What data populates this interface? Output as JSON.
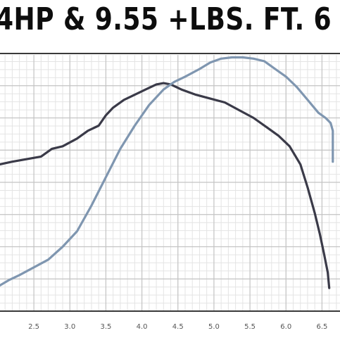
{
  "chart_data": {
    "type": "line",
    "title": "4HP & 9.55 +LBS. FT. 6",
    "xlabel": "",
    "ylabel": "",
    "x_ticks": [
      "2.5",
      "3.0",
      "3.5",
      "4.0",
      "4.5",
      "5.0",
      "5.5",
      "6.0",
      "6.5"
    ],
    "xlim": [
      2.03,
      6.75
    ],
    "ylim": [
      0,
      100
    ],
    "grid": true,
    "legend": "none",
    "series": [
      {
        "color": "#3a3a48",
        "points": [
          [
            2.03,
            57
          ],
          [
            2.2,
            58
          ],
          [
            2.4,
            59
          ],
          [
            2.6,
            60
          ],
          [
            2.75,
            63
          ],
          [
            2.9,
            64
          ],
          [
            3.1,
            67
          ],
          [
            3.25,
            70
          ],
          [
            3.4,
            72
          ],
          [
            3.5,
            76
          ],
          [
            3.6,
            79
          ],
          [
            3.75,
            82
          ],
          [
            3.9,
            84
          ],
          [
            4.05,
            86
          ],
          [
            4.2,
            88
          ],
          [
            4.3,
            88.5
          ],
          [
            4.4,
            88
          ],
          [
            4.55,
            86
          ],
          [
            4.75,
            84
          ],
          [
            4.95,
            82.5
          ],
          [
            5.15,
            81
          ],
          [
            5.35,
            78
          ],
          [
            5.55,
            75
          ],
          [
            5.75,
            71
          ],
          [
            5.9,
            68
          ],
          [
            6.05,
            64
          ],
          [
            6.2,
            57
          ],
          [
            6.3,
            48
          ],
          [
            6.4,
            38
          ],
          [
            6.47,
            30
          ],
          [
            6.53,
            22
          ],
          [
            6.58,
            15
          ],
          [
            6.6,
            9
          ]
        ]
      },
      {
        "color": "#7f96b0",
        "points": [
          [
            2.03,
            10
          ],
          [
            2.15,
            12
          ],
          [
            2.3,
            14
          ],
          [
            2.5,
            17
          ],
          [
            2.7,
            20
          ],
          [
            2.9,
            25
          ],
          [
            3.1,
            31
          ],
          [
            3.3,
            41
          ],
          [
            3.5,
            52
          ],
          [
            3.7,
            63
          ],
          [
            3.9,
            72
          ],
          [
            4.1,
            80
          ],
          [
            4.3,
            86
          ],
          [
            4.45,
            89
          ],
          [
            4.6,
            91
          ],
          [
            4.8,
            94
          ],
          [
            4.95,
            96.5
          ],
          [
            5.1,
            98
          ],
          [
            5.25,
            98.5
          ],
          [
            5.4,
            98.5
          ],
          [
            5.55,
            98
          ],
          [
            5.7,
            97
          ],
          [
            5.85,
            94
          ],
          [
            6.0,
            91
          ],
          [
            6.15,
            87
          ],
          [
            6.3,
            82
          ],
          [
            6.45,
            77
          ],
          [
            6.55,
            75
          ],
          [
            6.62,
            73
          ],
          [
            6.65,
            70
          ],
          [
            6.65,
            63
          ],
          [
            6.65,
            58
          ]
        ]
      }
    ]
  }
}
